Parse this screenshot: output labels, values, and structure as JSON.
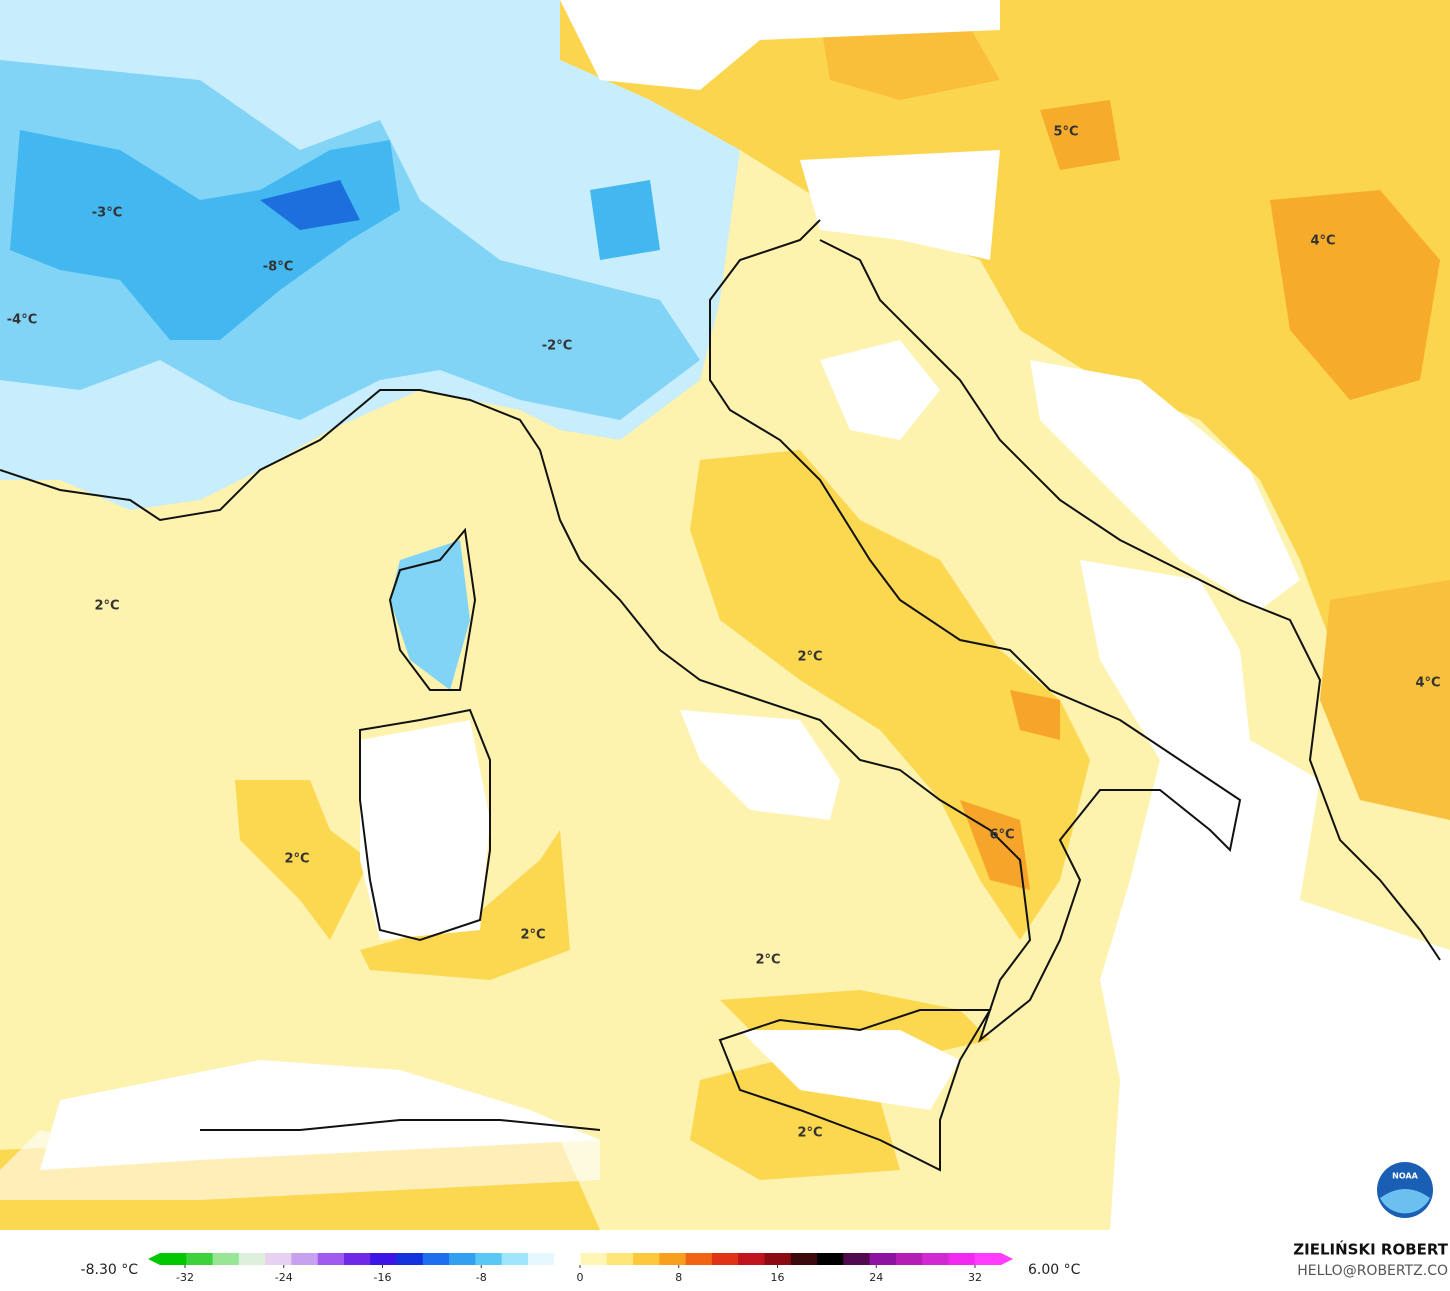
{
  "map": {
    "labels": [
      "-3°C",
      "-8°C",
      "-4°C",
      "-2°C",
      "2°C",
      "2°C",
      "2°C",
      "2°C",
      "2°C",
      "2°C",
      "5°C",
      "4°C",
      "4°C",
      "6°C"
    ]
  },
  "legend": {
    "min_label": "-8.30 °C",
    "max_label": "6.00 °C",
    "ticks": [
      -32,
      -24,
      -16,
      -8,
      0,
      8,
      16,
      24,
      32
    ]
  },
  "credit": {
    "author": "ZIELIŃSKI ROBERT",
    "contact": "HELLO@ROBERTZ.CO"
  },
  "logo": "NOAA"
}
